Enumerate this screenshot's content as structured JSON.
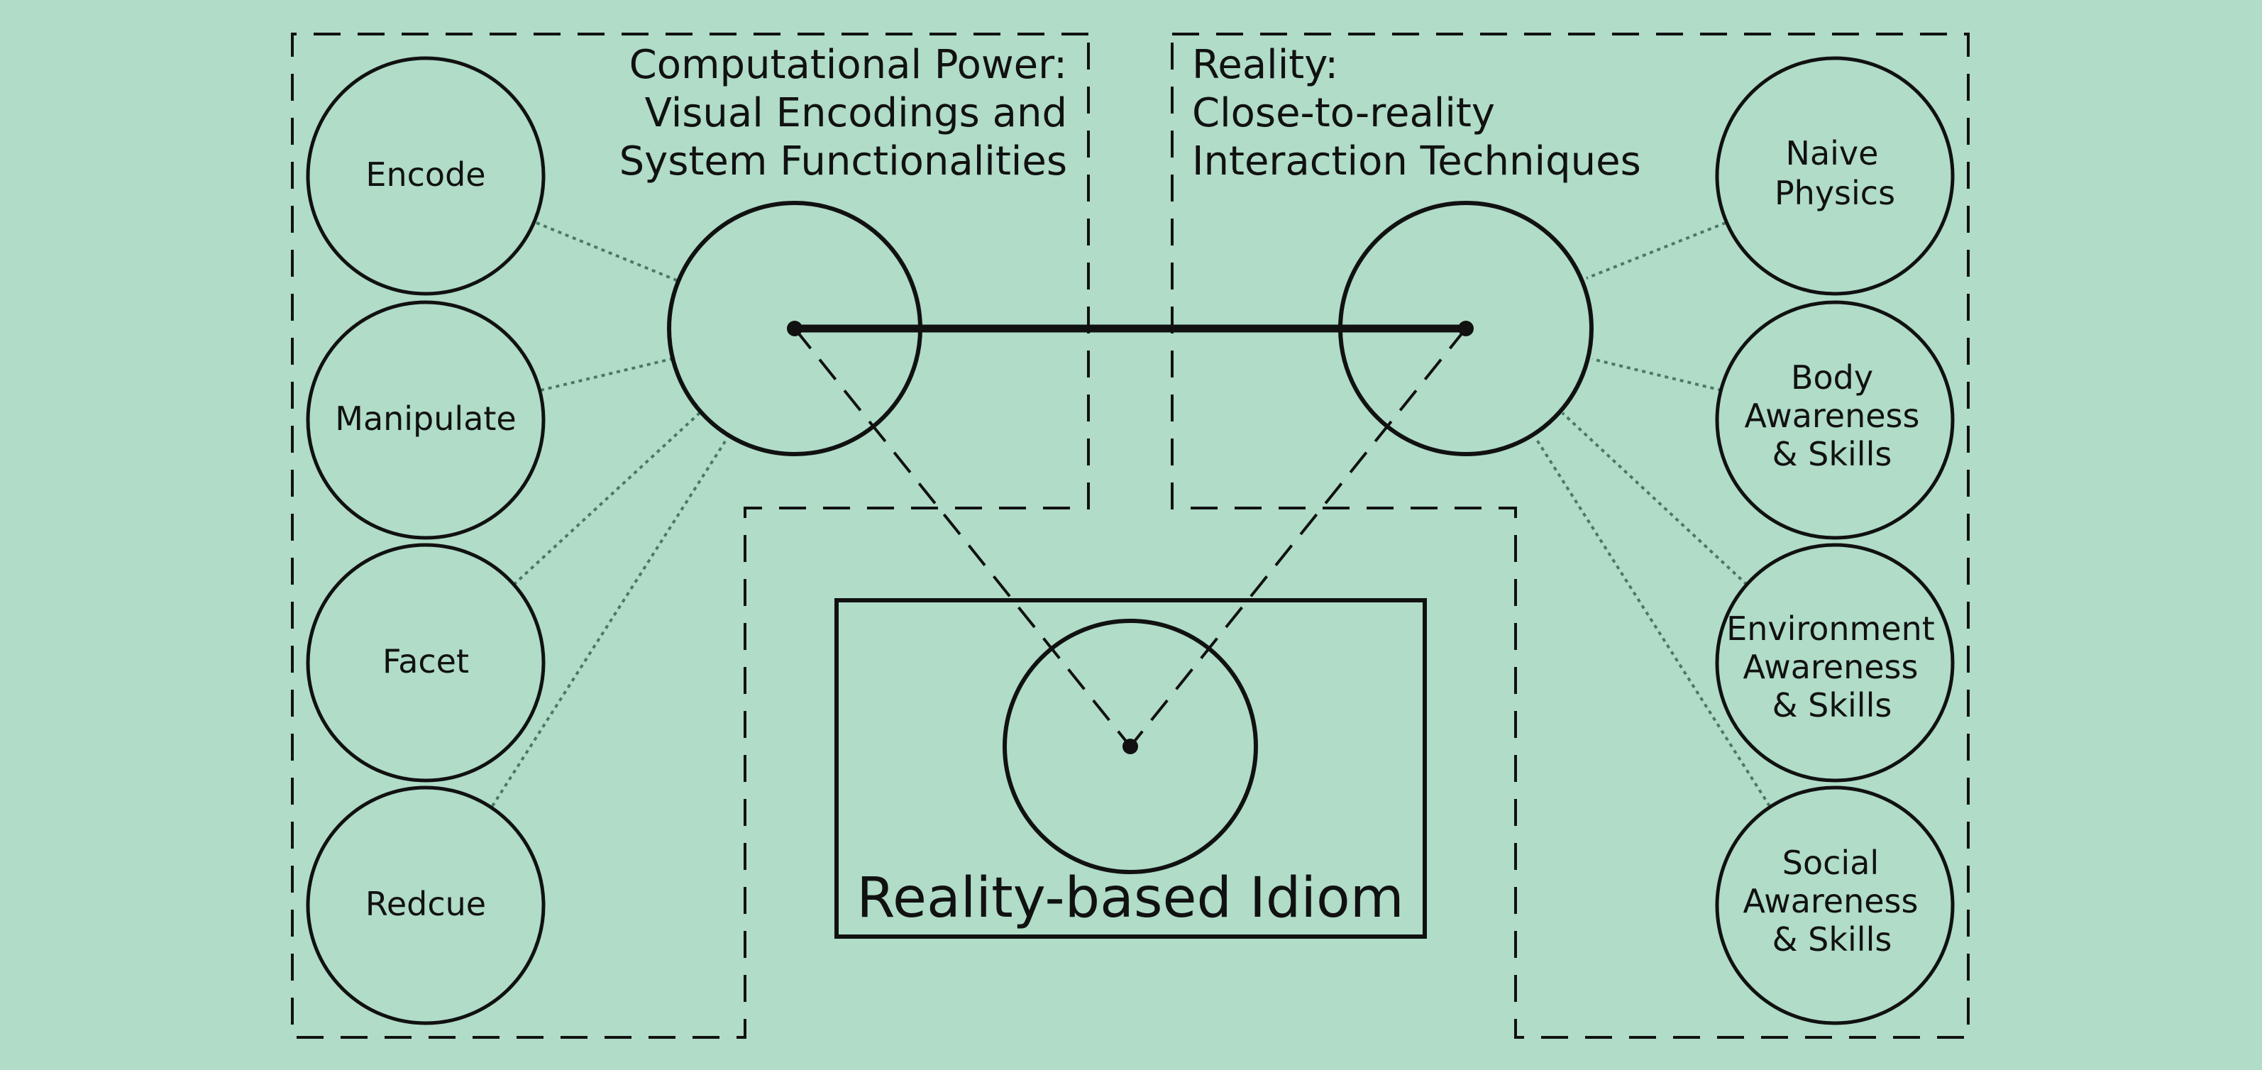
{
  "colors": {
    "background": "#b0dcc8",
    "stroke": "#111111",
    "dotted_connector": "#4a7a64"
  },
  "left_group": {
    "title_lines": [
      "Computational Power:",
      "Visual Encodings and",
      "System Functionalities"
    ],
    "circles": [
      "Encode",
      "Manipulate",
      "Facet",
      "Redcue"
    ]
  },
  "right_group": {
    "title_lines": [
      "Reality:",
      "Close-to-reality",
      "Interaction Techniques"
    ],
    "circles": [
      [
        "Naive",
        "Physics"
      ],
      [
        "Body",
        "Awareness",
        "& Skills"
      ],
      [
        "Environment",
        "Awareness",
        "& Skills"
      ],
      [
        "Social",
        "Awareness",
        "& Skills"
      ]
    ]
  },
  "center": {
    "label": "Reality-based Idiom"
  }
}
